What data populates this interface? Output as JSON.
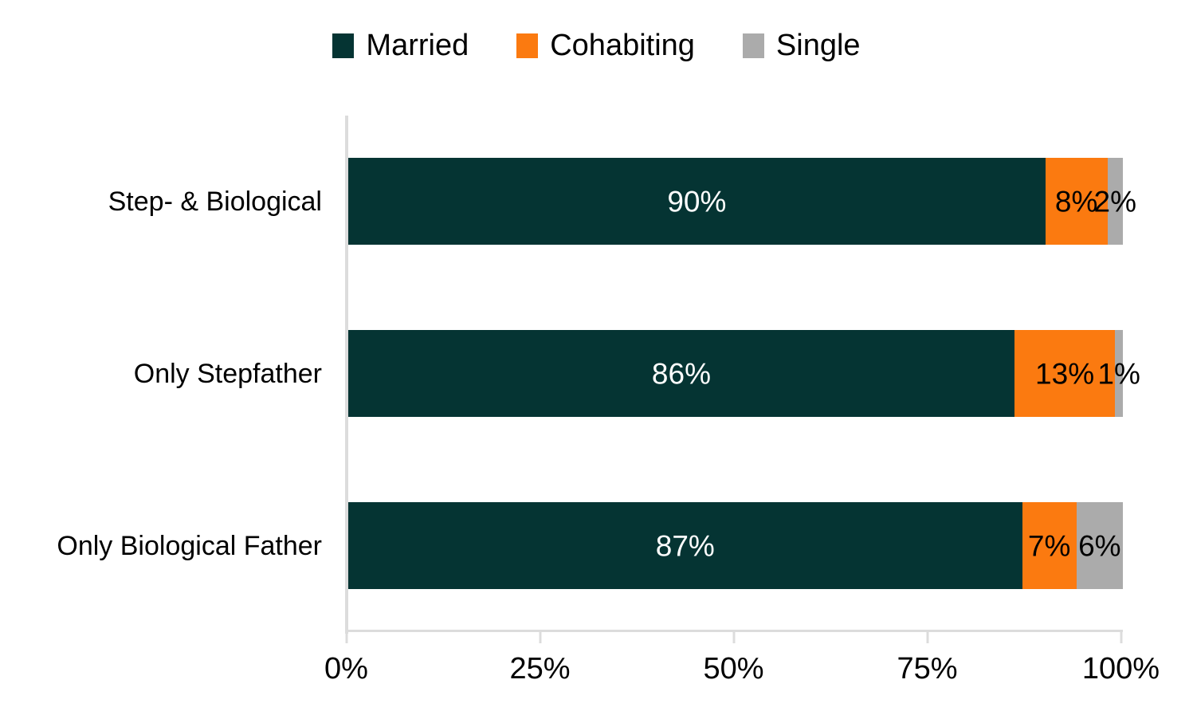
{
  "chart_data": {
    "type": "bar",
    "orientation": "horizontal",
    "stacked": true,
    "title": "",
    "categories": [
      "Step- & Biological",
      "Only Stepfather",
      "Only Biological Father"
    ],
    "series": [
      {
        "name": "Married",
        "color": "#053433",
        "label_color": "#ffffff",
        "values": [
          90,
          86,
          87
        ]
      },
      {
        "name": "Cohabiting",
        "color": "#fb7a10",
        "label_color": "#000000",
        "values": [
          8,
          13,
          7
        ]
      },
      {
        "name": "Single",
        "color": "#ababab",
        "label_color": "#000000",
        "values": [
          2,
          1,
          6
        ]
      }
    ],
    "value_suffix": "%",
    "x_ticks": [
      "0%",
      "25%",
      "50%",
      "75%",
      "100%"
    ],
    "xlim": [
      0,
      100
    ],
    "grid": false,
    "legend_position": "top",
    "axis_color": "#dcdcdc",
    "text_color": "#000000",
    "background_color": "#ffffff"
  }
}
